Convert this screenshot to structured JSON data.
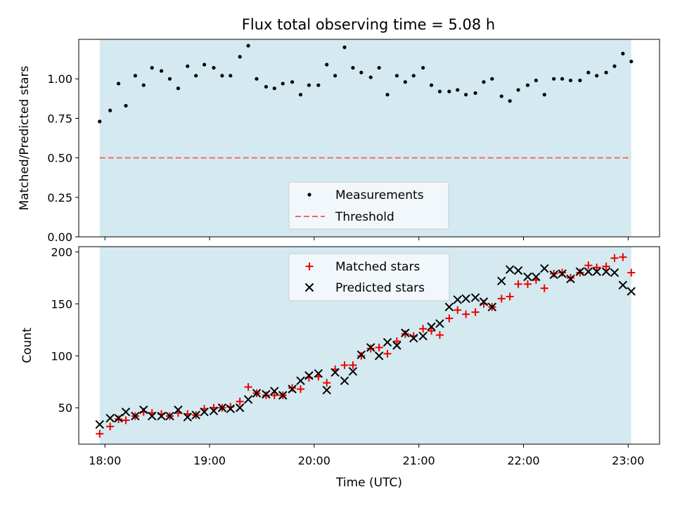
{
  "title": "Flux total observing time = 5.08 h",
  "colors": {
    "shade": "#d4eaf0",
    "measurements": "#000000",
    "threshold": "#f06b6b",
    "matched": "#ee0000",
    "predicted": "#000000"
  },
  "chart_data": [
    {
      "type": "scatter",
      "ylabel": "Matched/Predicted stars",
      "ylim": [
        0.0,
        1.25
      ],
      "yticks": [
        0.0,
        0.25,
        0.5,
        0.75,
        1.0
      ],
      "ytick_labels": [
        "0.00",
        "0.25",
        "0.50",
        "0.75",
        "1.00"
      ],
      "xlim": [
        17.75,
        23.3
      ],
      "shaded_span": [
        17.95,
        23.03
      ],
      "threshold": 0.5,
      "legend": {
        "placement": "lower-center",
        "entries": [
          "Measurements",
          "Threshold"
        ]
      },
      "series": [
        {
          "name": "Measurements",
          "x": [
            17.95,
            18.05,
            18.13,
            18.2,
            18.29,
            18.37,
            18.45,
            18.54,
            18.62,
            18.7,
            18.79,
            18.87,
            18.95,
            19.04,
            19.12,
            19.2,
            19.29,
            19.37,
            19.45,
            19.54,
            19.62,
            19.7,
            19.79,
            19.87,
            19.95,
            20.04,
            20.12,
            20.2,
            20.29,
            20.37,
            20.45,
            20.54,
            20.62,
            20.7,
            20.79,
            20.87,
            20.95,
            21.04,
            21.12,
            21.2,
            21.29,
            21.37,
            21.45,
            21.54,
            21.62,
            21.7,
            21.79,
            21.87,
            21.95,
            22.04,
            22.12,
            22.2,
            22.29,
            22.37,
            22.45,
            22.54,
            22.62,
            22.7,
            22.79,
            22.87,
            22.95,
            23.03
          ],
          "y": [
            0.73,
            0.8,
            0.97,
            0.83,
            1.02,
            0.96,
            1.07,
            1.05,
            1.0,
            0.94,
            1.08,
            1.02,
            1.09,
            1.07,
            1.02,
            1.02,
            1.14,
            1.21,
            1.0,
            0.95,
            0.94,
            0.97,
            0.98,
            0.9,
            0.96,
            0.96,
            1.09,
            1.02,
            1.2,
            1.07,
            1.04,
            1.01,
            1.07,
            0.9,
            1.02,
            0.98,
            1.02,
            1.07,
            0.96,
            0.92,
            0.92,
            0.93,
            0.9,
            0.91,
            0.98,
            1.0,
            0.89,
            0.86,
            0.93,
            0.96,
            0.99,
            0.9,
            1.0,
            1.0,
            0.99,
            0.99,
            1.04,
            1.02,
            1.04,
            1.08,
            1.16,
            1.11
          ]
        },
        {
          "name": "Threshold",
          "y": 0.5
        }
      ]
    },
    {
      "type": "scatter",
      "xlabel": "Time (UTC)",
      "ylabel": "Count",
      "ylim": [
        15,
        205
      ],
      "yticks": [
        50,
        100,
        150,
        200
      ],
      "ytick_labels": [
        "50",
        "100",
        "150",
        "200"
      ],
      "xlim": [
        17.75,
        23.3
      ],
      "xticks": [
        18,
        19,
        20,
        21,
        22,
        23
      ],
      "xtick_labels": [
        "18:00",
        "19:00",
        "20:00",
        "21:00",
        "22:00",
        "23:00"
      ],
      "shaded_span": [
        17.95,
        23.03
      ],
      "legend": {
        "placement": "top-center",
        "entries": [
          "Matched stars",
          "Predicted stars"
        ]
      },
      "series": [
        {
          "name": "Matched stars",
          "x": [
            17.95,
            18.05,
            18.13,
            18.2,
            18.29,
            18.37,
            18.45,
            18.54,
            18.62,
            18.7,
            18.79,
            18.87,
            18.95,
            19.04,
            19.12,
            19.2,
            19.29,
            19.37,
            19.45,
            19.54,
            19.62,
            19.7,
            19.79,
            19.87,
            19.95,
            20.04,
            20.12,
            20.2,
            20.29,
            20.37,
            20.45,
            20.54,
            20.62,
            20.7,
            20.79,
            20.87,
            20.95,
            21.04,
            21.12,
            21.2,
            21.29,
            21.37,
            21.45,
            21.54,
            21.62,
            21.7,
            21.79,
            21.87,
            21.95,
            22.04,
            22.12,
            22.2,
            22.29,
            22.37,
            22.45,
            22.54,
            22.62,
            22.7,
            22.79,
            22.87,
            22.95,
            23.03
          ],
          "y": [
            25,
            32,
            39,
            38,
            42,
            46,
            45,
            44,
            42,
            45,
            44,
            43,
            49,
            50,
            50,
            51,
            56,
            70,
            64,
            62,
            62,
            62,
            69,
            68,
            79,
            80,
            74,
            87,
            91,
            91,
            100,
            107,
            108,
            102,
            114,
            121,
            119,
            126,
            124,
            120,
            136,
            144,
            140,
            142,
            150,
            147,
            155,
            157,
            169,
            169,
            173,
            165,
            179,
            180,
            175,
            180,
            187,
            185,
            186,
            194,
            195,
            180
          ]
        },
        {
          "name": "Predicted stars",
          "x": [
            17.95,
            18.05,
            18.13,
            18.2,
            18.29,
            18.37,
            18.45,
            18.54,
            18.62,
            18.7,
            18.79,
            18.87,
            18.95,
            19.04,
            19.12,
            19.2,
            19.29,
            19.37,
            19.45,
            19.54,
            19.62,
            19.7,
            19.79,
            19.87,
            19.95,
            20.04,
            20.12,
            20.2,
            20.29,
            20.37,
            20.45,
            20.54,
            20.62,
            20.7,
            20.79,
            20.87,
            20.95,
            21.04,
            21.12,
            21.2,
            21.29,
            21.37,
            21.45,
            21.54,
            21.62,
            21.7,
            21.79,
            21.87,
            21.95,
            22.04,
            22.12,
            22.2,
            22.29,
            22.37,
            22.45,
            22.54,
            22.62,
            22.7,
            22.79,
            22.87,
            22.95,
            23.03
          ],
          "y": [
            34,
            40,
            40,
            46,
            42,
            48,
            42,
            42,
            42,
            48,
            41,
            43,
            46,
            47,
            50,
            49,
            50,
            58,
            64,
            63,
            66,
            62,
            68,
            76,
            81,
            83,
            67,
            84,
            76,
            85,
            101,
            108,
            100,
            113,
            110,
            122,
            117,
            119,
            128,
            131,
            147,
            154,
            155,
            156,
            152,
            147,
            172,
            183,
            182,
            176,
            176,
            184,
            178,
            179,
            174,
            181,
            181,
            181,
            181,
            180,
            168,
            162
          ]
        }
      ]
    }
  ]
}
